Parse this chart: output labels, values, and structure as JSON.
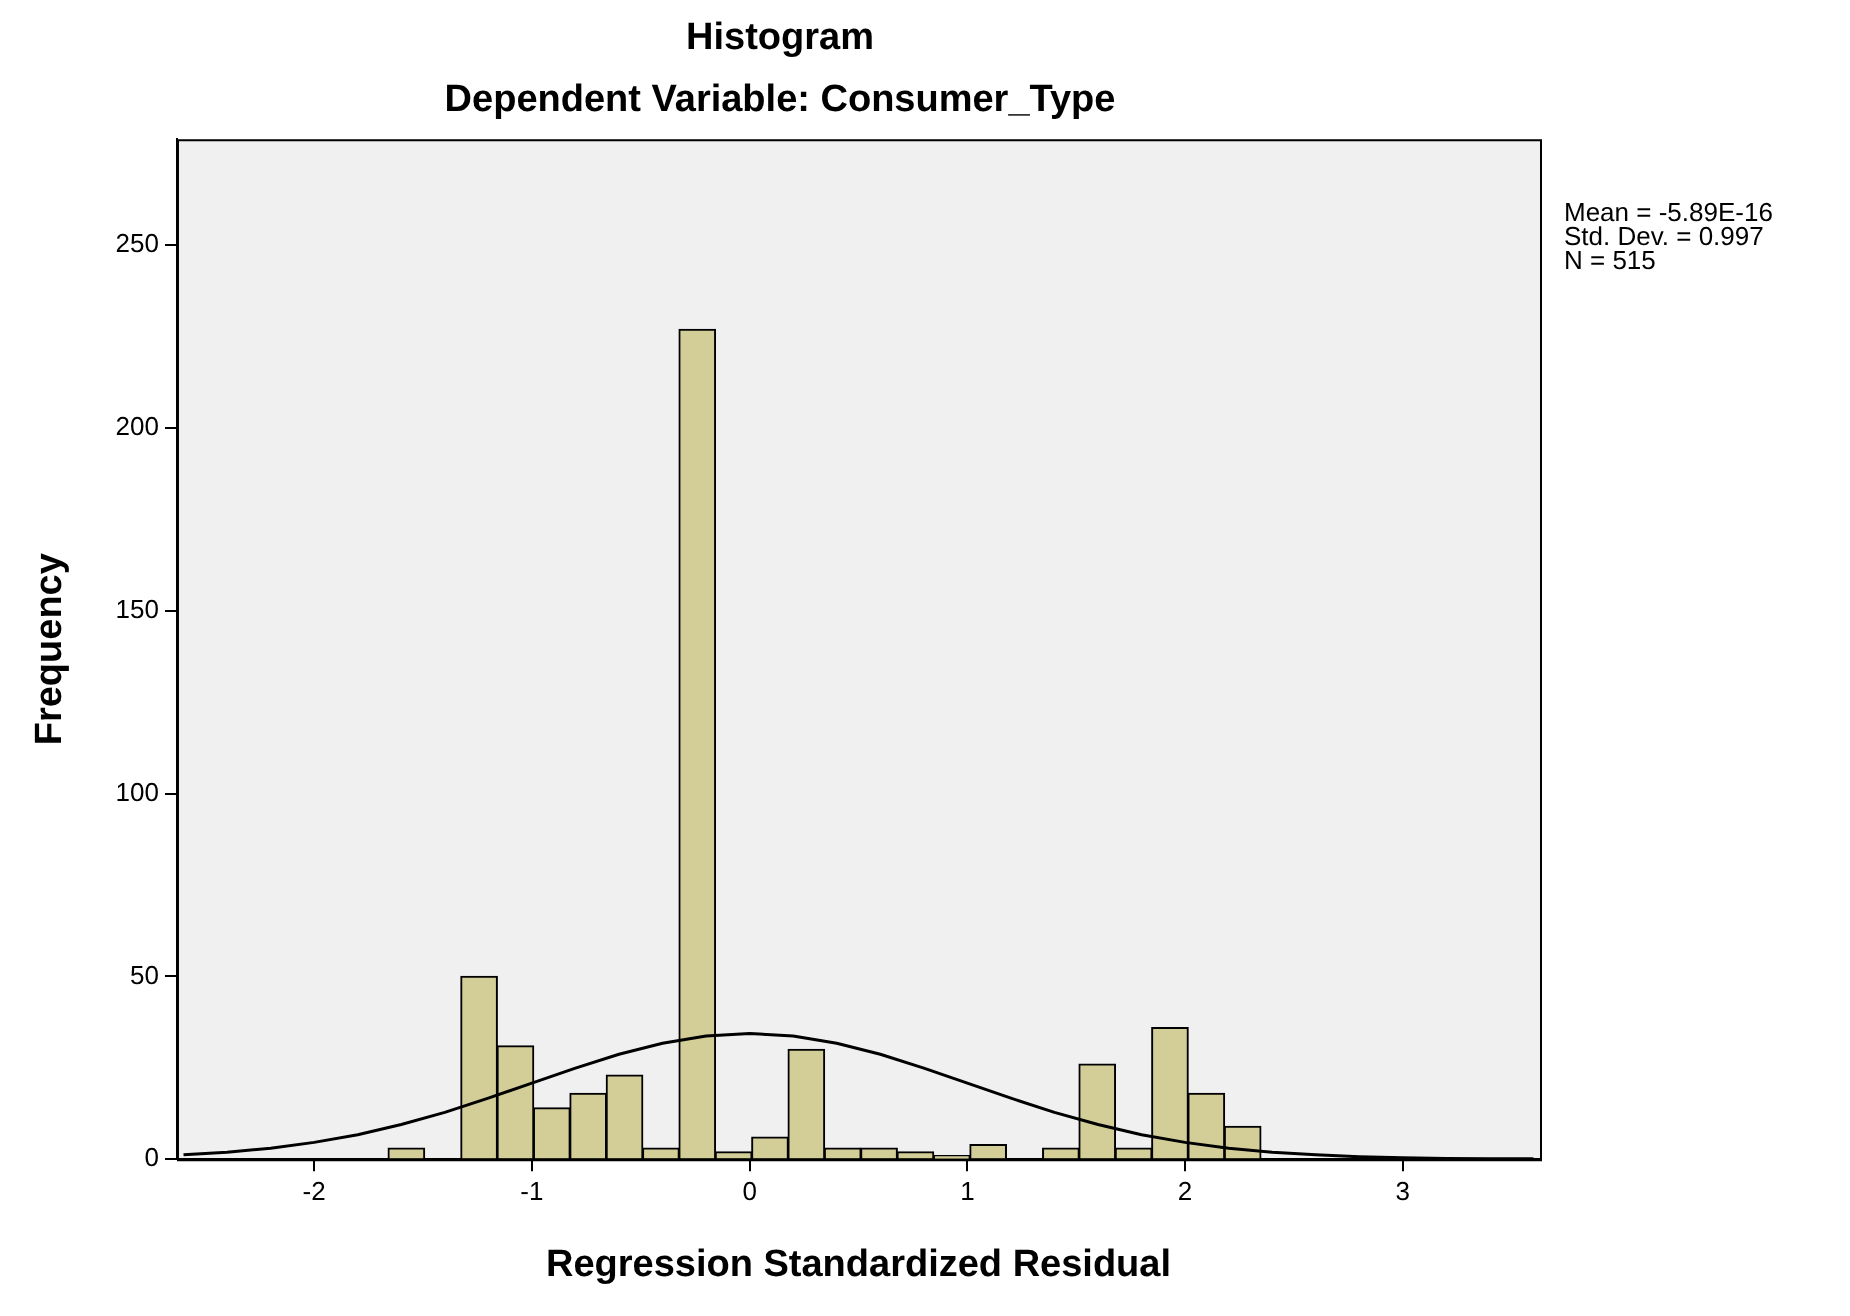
{
  "chart_data": {
    "type": "histogram",
    "title": "Histogram",
    "subtitle": "Dependent Variable: Consumer_Type",
    "xlabel": "Regression Standardized Residual",
    "ylabel": "Frequency",
    "bins": [
      -1.66,
      -1.493,
      -1.326,
      -1.159,
      -0.992,
      -0.825,
      -0.658,
      -0.491,
      -0.324,
      -0.157,
      0.01,
      0.177,
      0.344,
      0.511,
      0.678,
      0.845,
      1.012,
      1.179,
      1.346,
      1.513,
      1.68,
      1.847,
      2.014,
      2.181,
      2.348
    ],
    "values": [
      3,
      0,
      50,
      31,
      14,
      18,
      23,
      3,
      227,
      2,
      6,
      30,
      3,
      3,
      2,
      1,
      4,
      0,
      3,
      26,
      3,
      36,
      18,
      9
    ],
    "color": "#d3ce97",
    "series": [
      {
        "type": "line",
        "color": "#000000",
        "x": [
          -2.6,
          -2.4,
          -2.2,
          -2.0,
          -1.8,
          -1.6,
          -1.4,
          -1.2,
          -1.0,
          -0.8,
          -0.6,
          -0.4,
          -0.2,
          0,
          0.2,
          0.4,
          0.6,
          0.8,
          1.0,
          1.2,
          1.4,
          1.6,
          1.8,
          2.0,
          2.2,
          2.4,
          2.6,
          2.8,
          3.0,
          3.2,
          3.4,
          3.6
        ],
        "values": [
          1.2,
          1.9,
          3.0,
          4.6,
          6.7,
          9.5,
          12.8,
          16.7,
          20.8,
          24.9,
          28.7,
          31.7,
          33.7,
          34.4,
          33.7,
          31.7,
          28.7,
          24.9,
          20.8,
          16.7,
          12.8,
          9.5,
          6.7,
          4.6,
          3.0,
          1.9,
          1.2,
          0.7,
          0.4,
          0.2,
          0.1,
          0.1
        ]
      }
    ],
    "xlim": [
      -2.63,
      3.63
    ],
    "xticks": [
      -2,
      -1,
      0,
      1,
      2,
      3
    ],
    "ylim": [
      0,
      279
    ],
    "yticks": [
      0,
      50,
      100,
      150,
      200,
      250
    ],
    "grid": false,
    "legend": false,
    "marker": "none",
    "annotations": [
      "Mean = -5.89E-16",
      "Std. Dev. = 0.997",
      "N = 515"
    ]
  }
}
